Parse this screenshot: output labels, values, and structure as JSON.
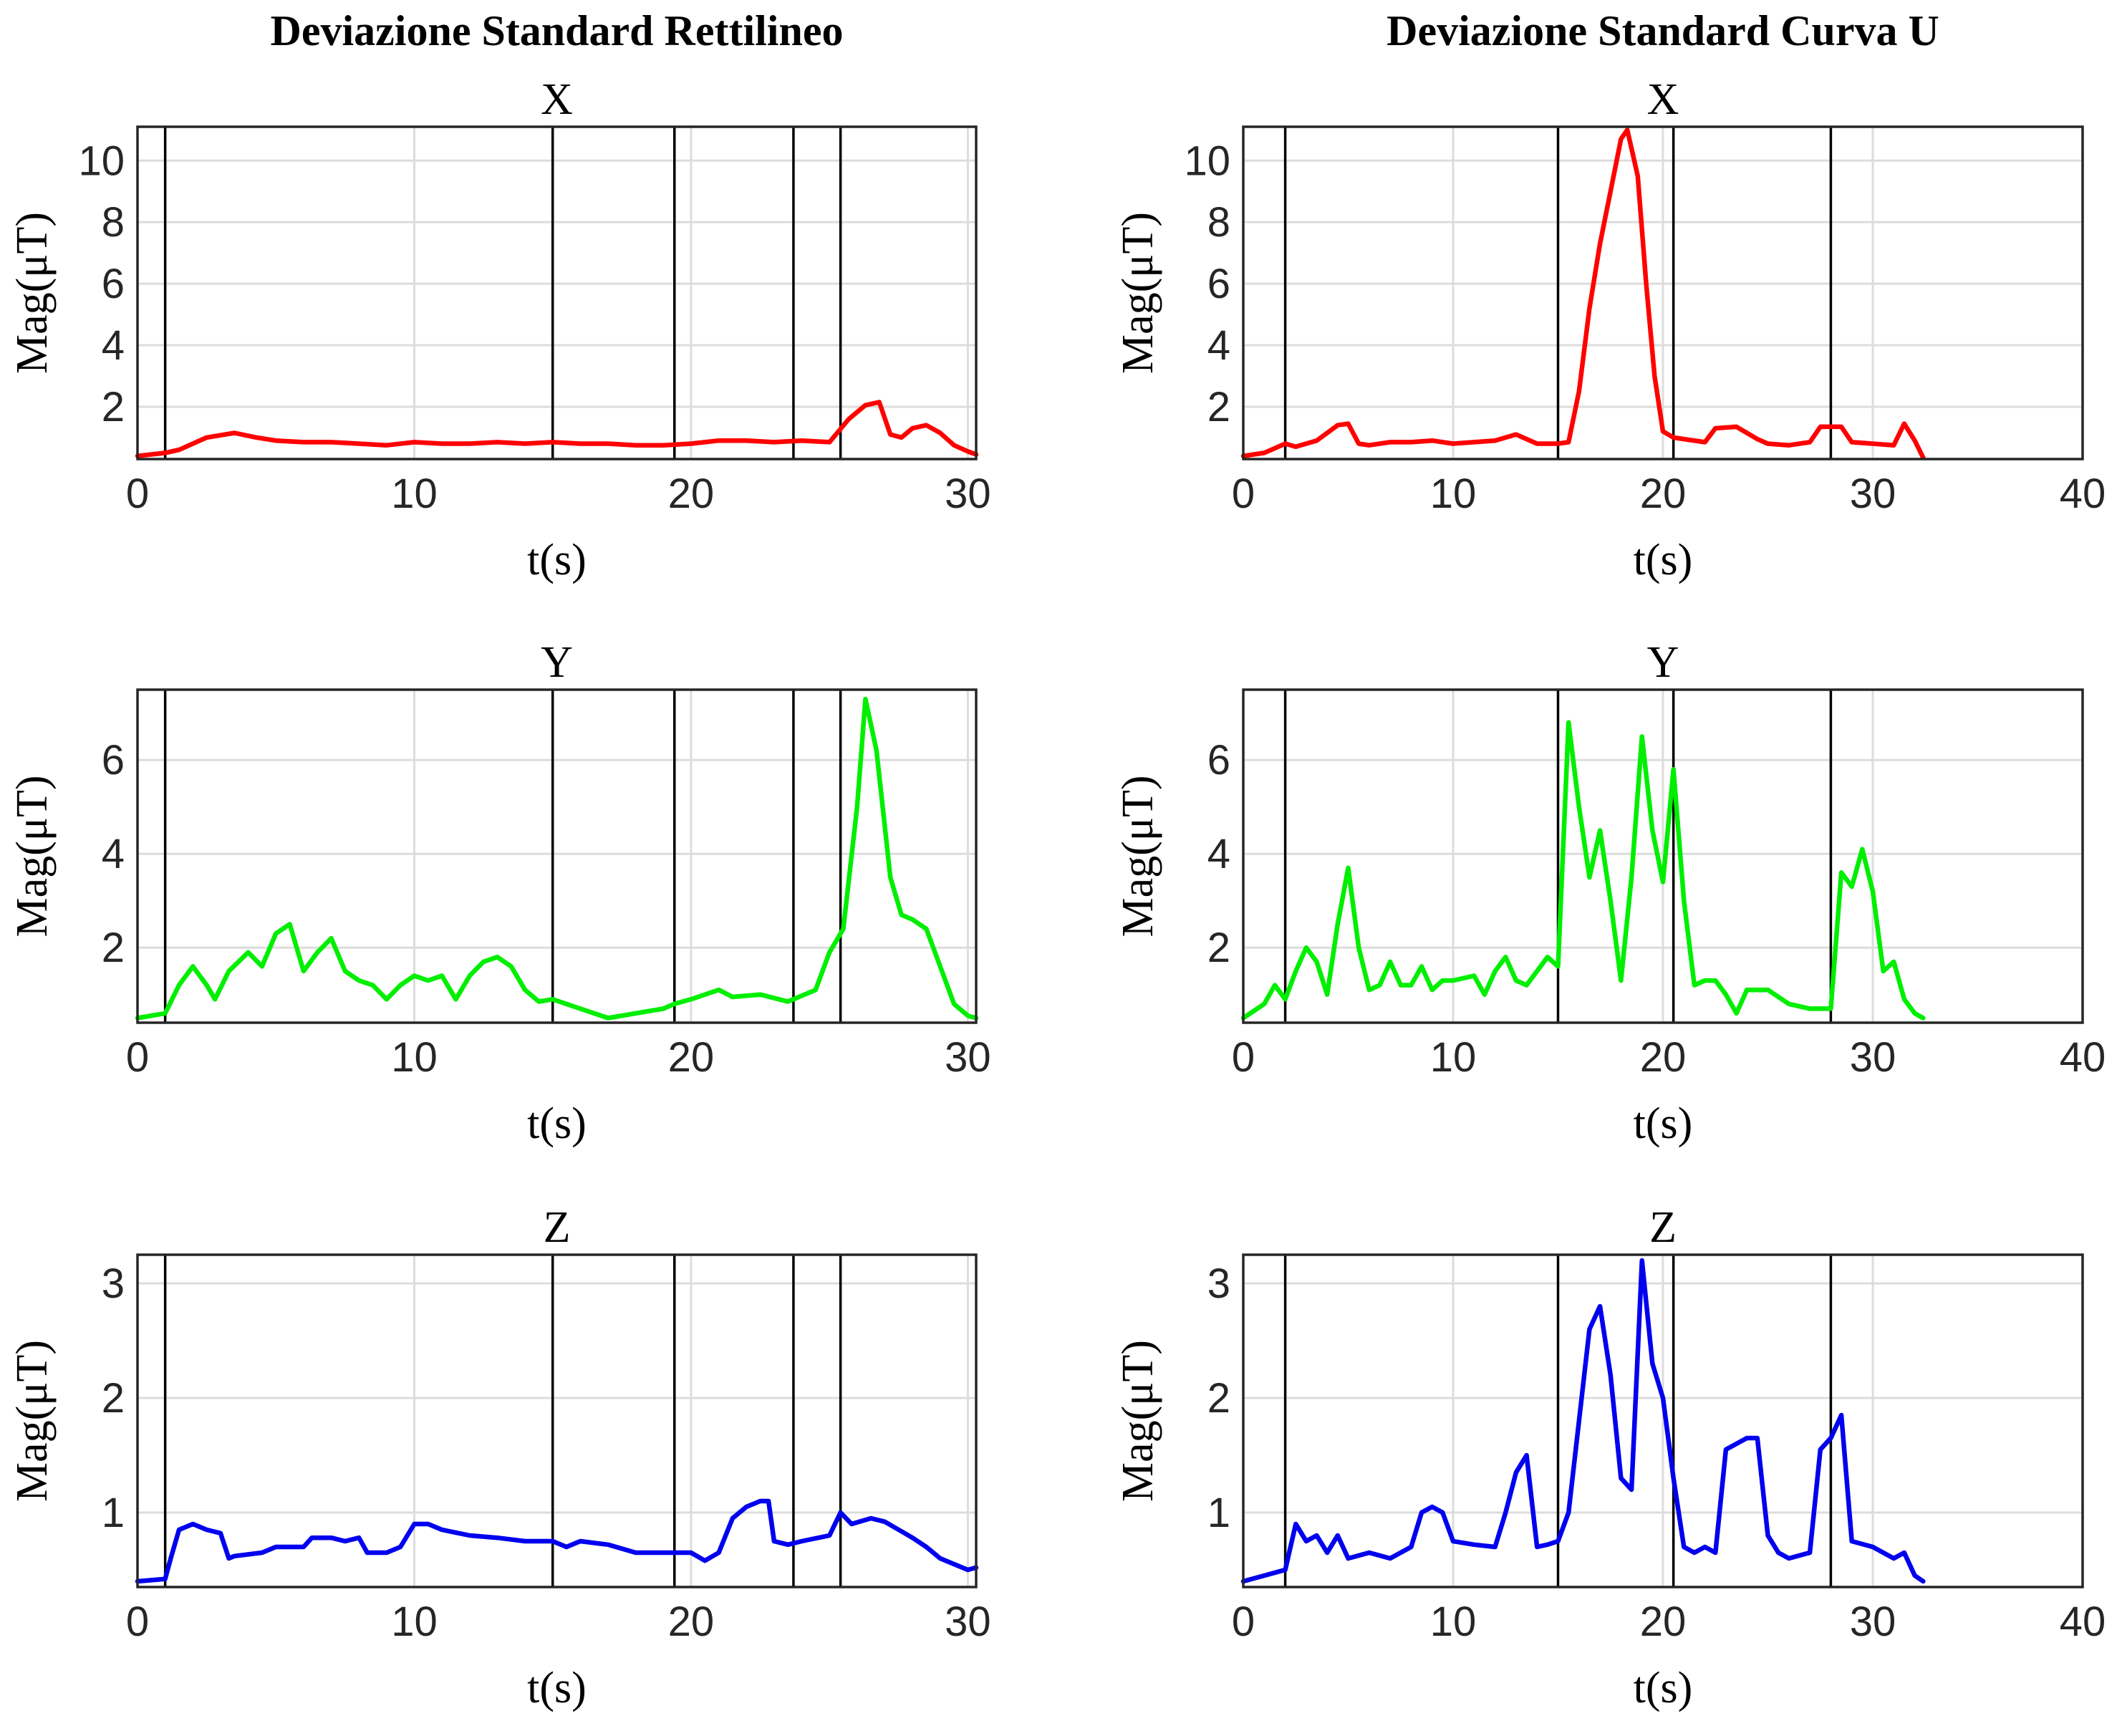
{
  "chart_data": [
    {
      "type": "line",
      "column_title": "Deviazione Standard Rettilineo",
      "title": "X",
      "xlabel": "t(s)",
      "ylabel": "Mag(μT)",
      "xlim": [
        0,
        30.3
      ],
      "ylim": [
        0.3,
        11.1
      ],
      "xticks": [
        0,
        10,
        20,
        30
      ],
      "yticks": [
        2,
        4,
        6,
        8,
        10
      ],
      "grid": true,
      "color": "#ff0000",
      "event_markers_x": [
        1,
        15,
        19.4,
        23.7,
        25.4
      ],
      "series": [
        {
          "x": [
            0,
            1,
            1.5,
            2.5,
            3.5,
            4.3,
            5,
            6,
            7,
            8,
            9,
            10,
            11,
            12,
            13,
            14,
            15,
            16,
            17,
            18,
            19,
            20,
            21,
            22,
            23,
            24,
            25,
            25.7,
            26.3,
            26.8,
            27.2,
            27.6,
            28,
            28.5,
            29,
            29.5,
            30,
            30.3
          ],
          "y": [
            0.4,
            0.5,
            0.6,
            1.0,
            1.15,
            1.0,
            0.9,
            0.85,
            0.85,
            0.8,
            0.75,
            0.85,
            0.8,
            0.8,
            0.85,
            0.8,
            0.85,
            0.8,
            0.8,
            0.75,
            0.75,
            0.8,
            0.9,
            0.9,
            0.85,
            0.9,
            0.85,
            1.6,
            2.05,
            2.15,
            1.1,
            1.0,
            1.3,
            1.4,
            1.15,
            0.75,
            0.55,
            0.45
          ]
        }
      ]
    },
    {
      "type": "line",
      "column_title": "Deviazione Standard Curva U",
      "title": "X",
      "xlabel": "t(s)",
      "ylabel": "Mag(μT)",
      "xlim": [
        0,
        40
      ],
      "ylim": [
        0.3,
        11.1
      ],
      "xticks": [
        0,
        10,
        20,
        30,
        40
      ],
      "yticks": [
        2,
        4,
        6,
        8,
        10
      ],
      "grid": true,
      "color": "#ff0000",
      "event_markers_x": [
        2,
        15,
        20.5,
        28
      ],
      "series": [
        {
          "x": [
            0,
            1,
            2,
            2.5,
            3.5,
            4.5,
            5,
            5.5,
            6,
            7,
            8,
            9,
            10,
            11,
            12,
            13,
            14,
            15,
            15.5,
            16,
            16.5,
            17,
            17.5,
            18,
            18.3,
            18.8,
            19.2,
            19.6,
            20,
            20.5,
            21,
            22,
            22.5,
            23.5,
            24.5,
            25,
            26,
            27,
            27.5,
            28.5,
            29,
            30,
            31,
            31.5,
            32,
            32.4
          ],
          "y": [
            0.4,
            0.5,
            0.8,
            0.7,
            0.9,
            1.4,
            1.45,
            0.8,
            0.75,
            0.85,
            0.85,
            0.9,
            0.8,
            0.85,
            0.9,
            1.1,
            0.8,
            0.8,
            0.85,
            2.5,
            5.2,
            7.3,
            9.0,
            10.7,
            11.0,
            9.5,
            6.0,
            3.0,
            1.2,
            1.0,
            0.95,
            0.85,
            1.3,
            1.35,
            0.95,
            0.8,
            0.75,
            0.85,
            1.35,
            1.35,
            0.85,
            0.8,
            0.75,
            1.45,
            0.9,
            0.35
          ]
        }
      ]
    },
    {
      "type": "line",
      "column_title": "",
      "title": "Y",
      "xlabel": "t(s)",
      "ylabel": "Mag(μT)",
      "xlim": [
        0,
        30.3
      ],
      "ylim": [
        0.4,
        7.5
      ],
      "xticks": [
        0,
        10,
        20,
        30
      ],
      "yticks": [
        2,
        4,
        6
      ],
      "grid": true,
      "color": "#00ee00",
      "event_markers_x": [
        1,
        15,
        19.4,
        23.7,
        25.4
      ],
      "series": [
        {
          "x": [
            0,
            1,
            1.5,
            2,
            2.5,
            2.8,
            3.3,
            4,
            4.5,
            5,
            5.5,
            6,
            6.5,
            7,
            7.5,
            8,
            8.5,
            9,
            9.5,
            10,
            10.5,
            11,
            11.5,
            12,
            12.5,
            13,
            13.5,
            14,
            14.5,
            15,
            16,
            17,
            18,
            19,
            19.4,
            20,
            21,
            21.5,
            22.5,
            23.5,
            24.5,
            25,
            25.5,
            26,
            26.3,
            26.7,
            27.2,
            27.6,
            28,
            28.5,
            29,
            29.5,
            30,
            30.3
          ],
          "y": [
            0.5,
            0.6,
            1.2,
            1.6,
            1.2,
            0.9,
            1.5,
            1.9,
            1.6,
            2.3,
            2.5,
            1.5,
            1.9,
            2.2,
            1.5,
            1.3,
            1.2,
            0.9,
            1.2,
            1.4,
            1.3,
            1.4,
            0.9,
            1.4,
            1.7,
            1.8,
            1.6,
            1.1,
            0.85,
            0.9,
            0.7,
            0.5,
            0.6,
            0.7,
            0.8,
            0.9,
            1.1,
            0.95,
            1.0,
            0.85,
            1.1,
            1.9,
            2.4,
            5.0,
            7.3,
            6.2,
            3.5,
            2.7,
            2.6,
            2.4,
            1.6,
            0.8,
            0.55,
            0.5
          ]
        }
      ]
    },
    {
      "type": "line",
      "column_title": "",
      "title": "Y",
      "xlabel": "t(s)",
      "ylabel": "Mag(μT)",
      "xlim": [
        0,
        40
      ],
      "ylim": [
        0.4,
        7.5
      ],
      "xticks": [
        0,
        10,
        20,
        30,
        40
      ],
      "yticks": [
        2,
        4,
        6
      ],
      "grid": true,
      "color": "#00ee00",
      "event_markers_x": [
        2,
        15,
        20.5,
        28
      ],
      "series": [
        {
          "x": [
            0,
            1,
            1.5,
            2,
            2.5,
            3,
            3.5,
            4,
            4.5,
            5,
            5.5,
            6,
            6.5,
            7,
            7.5,
            8,
            8.5,
            9,
            9.5,
            10,
            11,
            11.5,
            12,
            12.5,
            13,
            13.5,
            14,
            14.5,
            15,
            15.5,
            16,
            16.5,
            17,
            17.5,
            18,
            18.5,
            19,
            19.5,
            20,
            20.5,
            21,
            21.5,
            22,
            22.5,
            23,
            23.5,
            24,
            25,
            26,
            27,
            28,
            28.5,
            29,
            29.5,
            30,
            30.5,
            31,
            31.5,
            32,
            32.4
          ],
          "y": [
            0.5,
            0.8,
            1.2,
            0.9,
            1.5,
            2.0,
            1.7,
            1.0,
            2.5,
            3.7,
            2.0,
            1.1,
            1.2,
            1.7,
            1.2,
            1.2,
            1.6,
            1.1,
            1.3,
            1.3,
            1.4,
            1.0,
            1.5,
            1.8,
            1.3,
            1.2,
            1.5,
            1.8,
            1.6,
            6.8,
            5.0,
            3.5,
            4.5,
            3.0,
            1.3,
            3.5,
            6.5,
            4.5,
            3.4,
            5.8,
            3.0,
            1.2,
            1.3,
            1.3,
            1.0,
            0.6,
            1.1,
            1.1,
            0.8,
            0.7,
            0.7,
            3.6,
            3.3,
            4.1,
            3.2,
            1.5,
            1.7,
            0.9,
            0.6,
            0.5
          ]
        }
      ]
    },
    {
      "type": "line",
      "column_title": "",
      "title": "Z",
      "xlabel": "t(s)",
      "ylabel": "Mag(μT)",
      "xlim": [
        0,
        30.3
      ],
      "ylim": [
        0.35,
        3.25
      ],
      "xticks": [
        0,
        10,
        20,
        30
      ],
      "yticks": [
        1,
        2,
        3
      ],
      "grid": true,
      "color": "#0000ee",
      "event_markers_x": [
        1,
        15,
        19.4,
        23.7,
        25.4
      ],
      "series": [
        {
          "x": [
            0,
            1,
            1.2,
            1.5,
            2,
            2.5,
            3,
            3.3,
            3.5,
            4.5,
            5,
            6,
            6.3,
            7,
            7.5,
            8,
            8.3,
            9,
            9.5,
            10,
            10.5,
            11,
            12,
            13,
            14,
            15,
            15.5,
            16,
            17,
            18,
            19,
            20,
            20.5,
            21,
            21.5,
            22,
            22.5,
            22.8,
            23,
            23.5,
            24,
            25,
            25.4,
            25.8,
            26.5,
            27,
            27.5,
            28,
            28.5,
            29,
            29.5,
            30,
            30.3
          ],
          "y": [
            0.4,
            0.42,
            0.6,
            0.85,
            0.9,
            0.85,
            0.82,
            0.6,
            0.62,
            0.65,
            0.7,
            0.7,
            0.78,
            0.78,
            0.75,
            0.78,
            0.65,
            0.65,
            0.7,
            0.9,
            0.9,
            0.85,
            0.8,
            0.78,
            0.75,
            0.75,
            0.7,
            0.75,
            0.72,
            0.65,
            0.65,
            0.65,
            0.58,
            0.65,
            0.95,
            1.05,
            1.1,
            1.1,
            0.75,
            0.72,
            0.75,
            0.8,
            1.0,
            0.9,
            0.95,
            0.92,
            0.85,
            0.78,
            0.7,
            0.6,
            0.55,
            0.5,
            0.52
          ]
        }
      ]
    },
    {
      "type": "line",
      "column_title": "",
      "title": "Z",
      "xlabel": "t(s)",
      "ylabel": "Mag(μT)",
      "xlim": [
        0,
        40
      ],
      "ylim": [
        0.35,
        3.25
      ],
      "xticks": [
        0,
        10,
        20,
        30,
        40
      ],
      "yticks": [
        1,
        2,
        3
      ],
      "grid": true,
      "color": "#0000ee",
      "event_markers_x": [
        2,
        15,
        20.5,
        28
      ],
      "series": [
        {
          "x": [
            0,
            1,
            2,
            2.5,
            3,
            3.5,
            4,
            4.5,
            5,
            6,
            7,
            8,
            8.5,
            9,
            9.5,
            10,
            11,
            12,
            12.5,
            13,
            13.5,
            14,
            14.5,
            15,
            15.5,
            16,
            16.5,
            17,
            17.5,
            18,
            18.5,
            19,
            19.5,
            20,
            20.5,
            21,
            21.5,
            22,
            22.5,
            23,
            24,
            24.5,
            25,
            25.5,
            26,
            27,
            27.5,
            28,
            28.5,
            29,
            30,
            31,
            31.5,
            32,
            32.4
          ],
          "y": [
            0.4,
            0.45,
            0.5,
            0.9,
            0.75,
            0.8,
            0.65,
            0.8,
            0.6,
            0.65,
            0.6,
            0.7,
            1.0,
            1.05,
            1.0,
            0.75,
            0.72,
            0.7,
            1.0,
            1.35,
            1.5,
            0.7,
            0.72,
            0.75,
            1.0,
            1.8,
            2.6,
            2.8,
            2.2,
            1.3,
            1.2,
            3.2,
            2.3,
            2.0,
            1.3,
            0.7,
            0.65,
            0.7,
            0.65,
            1.55,
            1.65,
            1.65,
            0.8,
            0.65,
            0.6,
            0.65,
            1.55,
            1.65,
            1.85,
            0.75,
            0.7,
            0.6,
            0.65,
            0.45,
            0.4
          ]
        }
      ]
    }
  ]
}
